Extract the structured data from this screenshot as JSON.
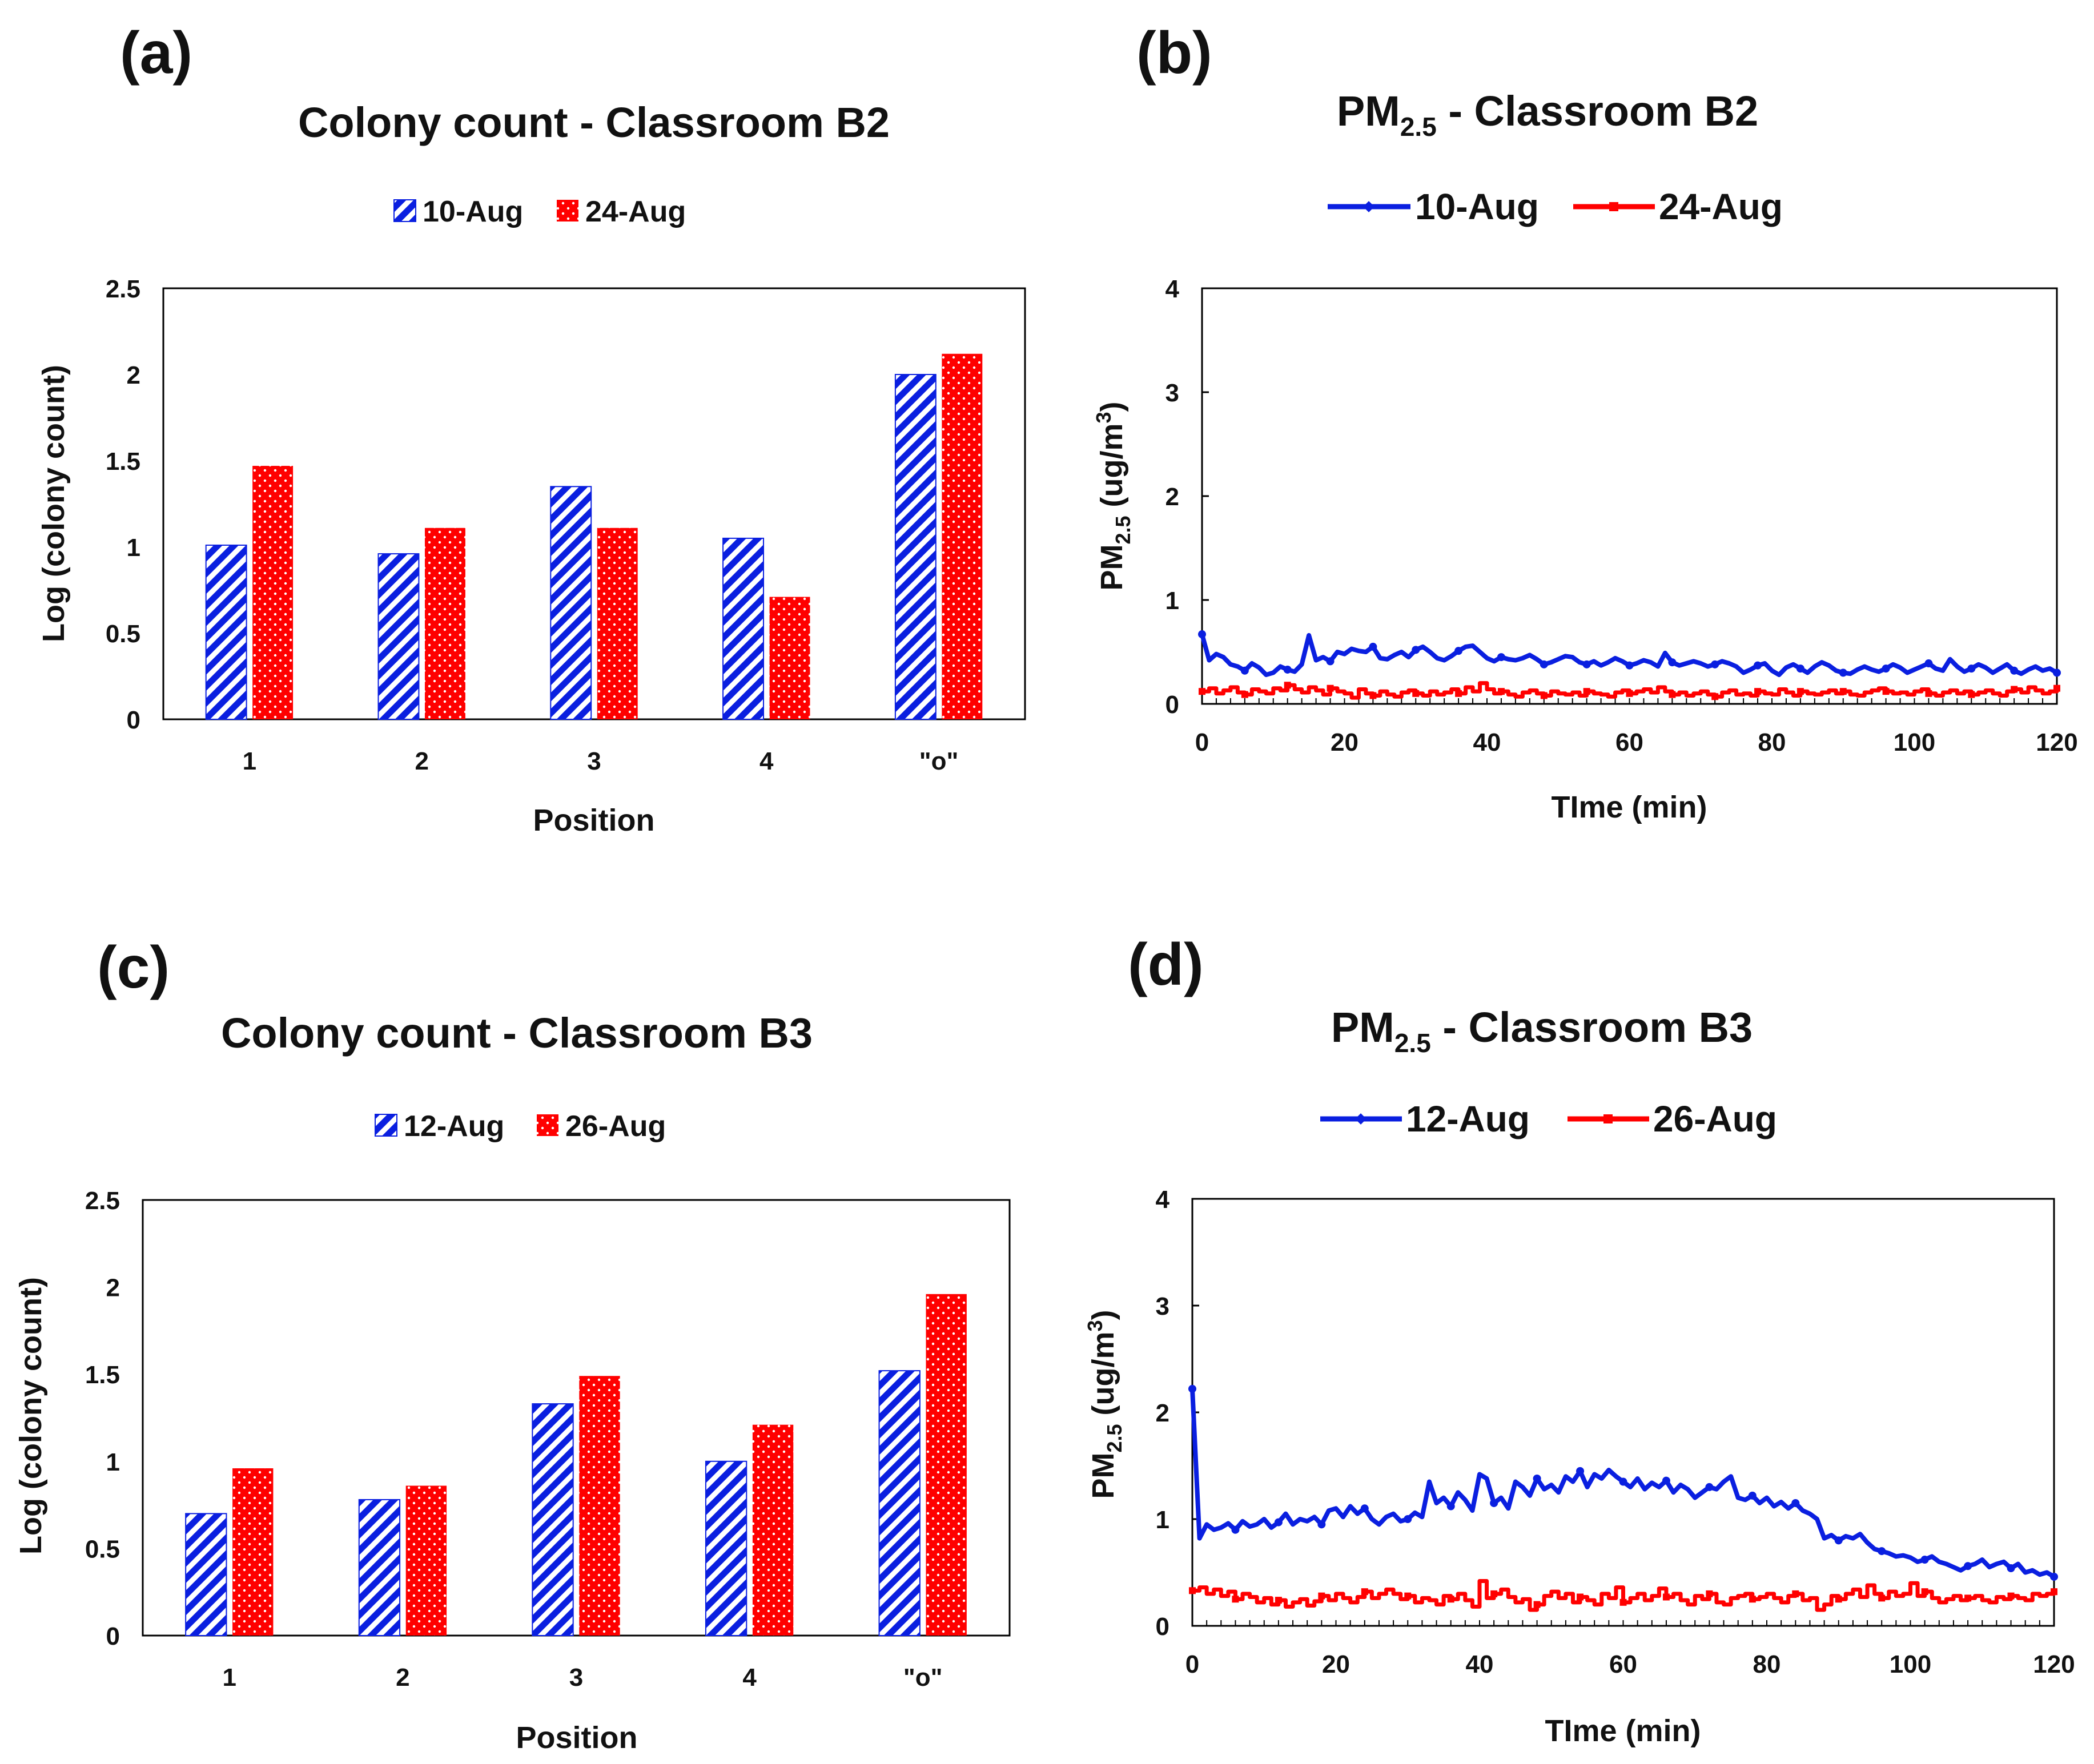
{
  "colors": {
    "blue": "#0a1fe0",
    "red": "#ff0000"
  },
  "chart_data": [
    {
      "id": "a",
      "panel": "(a)",
      "type": "bar",
      "title": "Colony count - Classroom B2",
      "xlabel": "Position",
      "ylabel": "Log (colony count)",
      "ylim": [
        0,
        2.5
      ],
      "yticks": [
        "0",
        "0.5",
        "1",
        "1.5",
        "2",
        "2.5"
      ],
      "categories": [
        "1",
        "2",
        "3",
        "4",
        "\"o\""
      ],
      "legend_position": "top",
      "series": [
        {
          "name": "10-Aug",
          "pattern": "diagonal-stripes",
          "color": "#0a1fe0",
          "values": [
            1.01,
            0.96,
            1.35,
            1.05,
            2.0
          ]
        },
        {
          "name": "24-Aug",
          "pattern": "dotted",
          "color": "#ff0000",
          "values": [
            1.47,
            1.11,
            1.11,
            0.71,
            2.12
          ]
        }
      ]
    },
    {
      "id": "b",
      "panel": "(b)",
      "type": "line",
      "title_main": "PM",
      "title_sub": "2.5",
      "title_rest": " - Classroom B2",
      "xlabel": "TIme (min)",
      "ylabel_main": "PM",
      "ylabel_sub": "2.5",
      "ylabel_rest": " (ug/m",
      "ylabel_sup": "3",
      "ylabel_end": ")",
      "xlim": [
        0,
        120
      ],
      "ylim": [
        0,
        4
      ],
      "xticks": [
        "0",
        "20",
        "40",
        "60",
        "80",
        "100",
        "120"
      ],
      "yticks": [
        "0",
        "1",
        "2",
        "3",
        "4"
      ],
      "legend_position": "top",
      "series": [
        {
          "name": "10-Aug",
          "color": "#0a1fe0",
          "marker": "diamond",
          "values": [
            0.67,
            0.42,
            0.48,
            0.45,
            0.38,
            0.36,
            0.32,
            0.39,
            0.35,
            0.28,
            0.3,
            0.36,
            0.33,
            0.31,
            0.38,
            0.66,
            0.42,
            0.45,
            0.41,
            0.5,
            0.48,
            0.53,
            0.51,
            0.5,
            0.55,
            0.44,
            0.43,
            0.47,
            0.5,
            0.45,
            0.52,
            0.55,
            0.5,
            0.44,
            0.42,
            0.46,
            0.51,
            0.55,
            0.56,
            0.5,
            0.44,
            0.41,
            0.45,
            0.43,
            0.42,
            0.44,
            0.47,
            0.43,
            0.38,
            0.4,
            0.43,
            0.46,
            0.45,
            0.4,
            0.38,
            0.41,
            0.37,
            0.4,
            0.44,
            0.41,
            0.37,
            0.39,
            0.42,
            0.4,
            0.36,
            0.49,
            0.4,
            0.37,
            0.39,
            0.41,
            0.39,
            0.36,
            0.38,
            0.41,
            0.39,
            0.36,
            0.3,
            0.33,
            0.37,
            0.39,
            0.32,
            0.28,
            0.35,
            0.38,
            0.34,
            0.3,
            0.36,
            0.4,
            0.37,
            0.32,
            0.3,
            0.29,
            0.33,
            0.36,
            0.33,
            0.31,
            0.34,
            0.38,
            0.35,
            0.3,
            0.33,
            0.36,
            0.39,
            0.34,
            0.32,
            0.43,
            0.36,
            0.31,
            0.34,
            0.38,
            0.35,
            0.3,
            0.34,
            0.38,
            0.32,
            0.29,
            0.33,
            0.36,
            0.32,
            0.34,
            0.3
          ]
        },
        {
          "name": "24-Aug",
          "color": "#ff0000",
          "marker": "square",
          "values": [
            0.12,
            0.15,
            0.1,
            0.13,
            0.16,
            0.11,
            0.09,
            0.14,
            0.12,
            0.1,
            0.15,
            0.13,
            0.18,
            0.14,
            0.11,
            0.16,
            0.13,
            0.09,
            0.15,
            0.12,
            0.1,
            0.06,
            0.14,
            0.1,
            0.08,
            0.12,
            0.09,
            0.07,
            0.11,
            0.13,
            0.1,
            0.08,
            0.12,
            0.09,
            0.11,
            0.14,
            0.1,
            0.16,
            0.12,
            0.2,
            0.14,
            0.1,
            0.12,
            0.09,
            0.07,
            0.11,
            0.13,
            0.1,
            0.08,
            0.12,
            0.1,
            0.09,
            0.11,
            0.08,
            0.12,
            0.1,
            0.09,
            0.07,
            0.11,
            0.13,
            0.1,
            0.12,
            0.14,
            0.11,
            0.16,
            0.12,
            0.09,
            0.11,
            0.08,
            0.1,
            0.12,
            0.09,
            0.07,
            0.11,
            0.13,
            0.09,
            0.1,
            0.08,
            0.12,
            0.1,
            0.09,
            0.14,
            0.11,
            0.08,
            0.12,
            0.1,
            0.09,
            0.11,
            0.13,
            0.1,
            0.12,
            0.09,
            0.08,
            0.11,
            0.13,
            0.15,
            0.12,
            0.1,
            0.11,
            0.09,
            0.12,
            0.14,
            0.1,
            0.08,
            0.11,
            0.13,
            0.1,
            0.12,
            0.09,
            0.11,
            0.13,
            0.1,
            0.08,
            0.12,
            0.14,
            0.11,
            0.16,
            0.13,
            0.1,
            0.12,
            0.15
          ]
        }
      ]
    },
    {
      "id": "c",
      "panel": "(c)",
      "type": "bar",
      "title": "Colony count - Classroom B3",
      "xlabel": "Position",
      "ylabel": "Log (colony count)",
      "ylim": [
        0,
        2.5
      ],
      "yticks": [
        "0",
        "0.5",
        "1",
        "1.5",
        "2",
        "2.5"
      ],
      "categories": [
        "1",
        "2",
        "3",
        "4",
        "\"o\""
      ],
      "legend_position": "top",
      "series": [
        {
          "name": "12-Aug",
          "pattern": "diagonal-stripes",
          "color": "#0a1fe0",
          "values": [
            0.7,
            0.78,
            1.33,
            1.0,
            1.52
          ]
        },
        {
          "name": "26-Aug",
          "pattern": "dotted",
          "color": "#ff0000",
          "values": [
            0.96,
            0.86,
            1.49,
            1.21,
            1.96
          ]
        }
      ]
    },
    {
      "id": "d",
      "panel": "(d)",
      "type": "line",
      "title_main": "PM",
      "title_sub": "2.5",
      "title_rest": " - Classroom B3",
      "xlabel": "TIme (min)",
      "ylabel_main": "PM",
      "ylabel_sub": "2.5",
      "ylabel_rest": " (ug/m",
      "ylabel_sup": "3",
      "ylabel_end": ")",
      "xlim": [
        0,
        120
      ],
      "ylim": [
        0,
        4
      ],
      "xticks": [
        "0",
        "20",
        "40",
        "60",
        "80",
        "100",
        "120"
      ],
      "yticks": [
        "0",
        "1",
        "2",
        "3",
        "4"
      ],
      "legend_position": "top",
      "series": [
        {
          "name": "12-Aug",
          "color": "#0a1fe0",
          "marker": "diamond",
          "values": [
            2.22,
            0.82,
            0.95,
            0.9,
            0.92,
            0.96,
            0.9,
            0.98,
            0.93,
            0.95,
            1.0,
            0.92,
            0.97,
            1.05,
            0.95,
            1.0,
            0.98,
            1.02,
            0.95,
            1.08,
            1.1,
            1.02,
            1.12,
            1.05,
            1.1,
            1.0,
            0.95,
            1.02,
            1.05,
            0.98,
            1.0,
            1.06,
            1.02,
            1.35,
            1.15,
            1.2,
            1.12,
            1.25,
            1.18,
            1.08,
            1.42,
            1.38,
            1.15,
            1.2,
            1.1,
            1.35,
            1.3,
            1.22,
            1.38,
            1.28,
            1.32,
            1.25,
            1.4,
            1.35,
            1.45,
            1.3,
            1.42,
            1.38,
            1.46,
            1.4,
            1.35,
            1.3,
            1.38,
            1.28,
            1.34,
            1.3,
            1.36,
            1.25,
            1.32,
            1.28,
            1.2,
            1.25,
            1.3,
            1.28,
            1.35,
            1.4,
            1.2,
            1.18,
            1.22,
            1.15,
            1.2,
            1.12,
            1.16,
            1.1,
            1.15,
            1.08,
            1.05,
            1.0,
            0.82,
            0.85,
            0.8,
            0.84,
            0.82,
            0.86,
            0.78,
            0.72,
            0.7,
            0.68,
            0.65,
            0.66,
            0.64,
            0.6,
            0.62,
            0.65,
            0.6,
            0.58,
            0.55,
            0.52,
            0.56,
            0.58,
            0.62,
            0.55,
            0.58,
            0.6,
            0.54,
            0.58,
            0.5,
            0.52,
            0.48,
            0.5,
            0.46
          ]
        },
        {
          "name": "26-Aug",
          "color": "#ff0000",
          "marker": "square",
          "values": [
            0.33,
            0.36,
            0.3,
            0.34,
            0.28,
            0.32,
            0.25,
            0.3,
            0.27,
            0.22,
            0.26,
            0.2,
            0.24,
            0.18,
            0.22,
            0.25,
            0.19,
            0.23,
            0.28,
            0.24,
            0.3,
            0.26,
            0.22,
            0.27,
            0.32,
            0.26,
            0.3,
            0.34,
            0.3,
            0.25,
            0.28,
            0.22,
            0.26,
            0.24,
            0.2,
            0.28,
            0.25,
            0.3,
            0.24,
            0.18,
            0.42,
            0.26,
            0.3,
            0.34,
            0.27,
            0.22,
            0.25,
            0.15,
            0.2,
            0.28,
            0.32,
            0.26,
            0.3,
            0.22,
            0.27,
            0.24,
            0.2,
            0.3,
            0.26,
            0.36,
            0.22,
            0.26,
            0.3,
            0.24,
            0.28,
            0.35,
            0.27,
            0.3,
            0.24,
            0.2,
            0.28,
            0.25,
            0.3,
            0.22,
            0.2,
            0.26,
            0.28,
            0.3,
            0.25,
            0.27,
            0.3,
            0.26,
            0.22,
            0.28,
            0.3,
            0.24,
            0.26,
            0.15,
            0.2,
            0.28,
            0.25,
            0.3,
            0.34,
            0.27,
            0.38,
            0.3,
            0.26,
            0.32,
            0.28,
            0.3,
            0.4,
            0.28,
            0.32,
            0.26,
            0.22,
            0.25,
            0.28,
            0.24,
            0.26,
            0.28,
            0.24,
            0.22,
            0.27,
            0.25,
            0.28,
            0.26,
            0.24,
            0.3,
            0.28,
            0.3,
            0.32
          ]
        }
      ]
    }
  ]
}
